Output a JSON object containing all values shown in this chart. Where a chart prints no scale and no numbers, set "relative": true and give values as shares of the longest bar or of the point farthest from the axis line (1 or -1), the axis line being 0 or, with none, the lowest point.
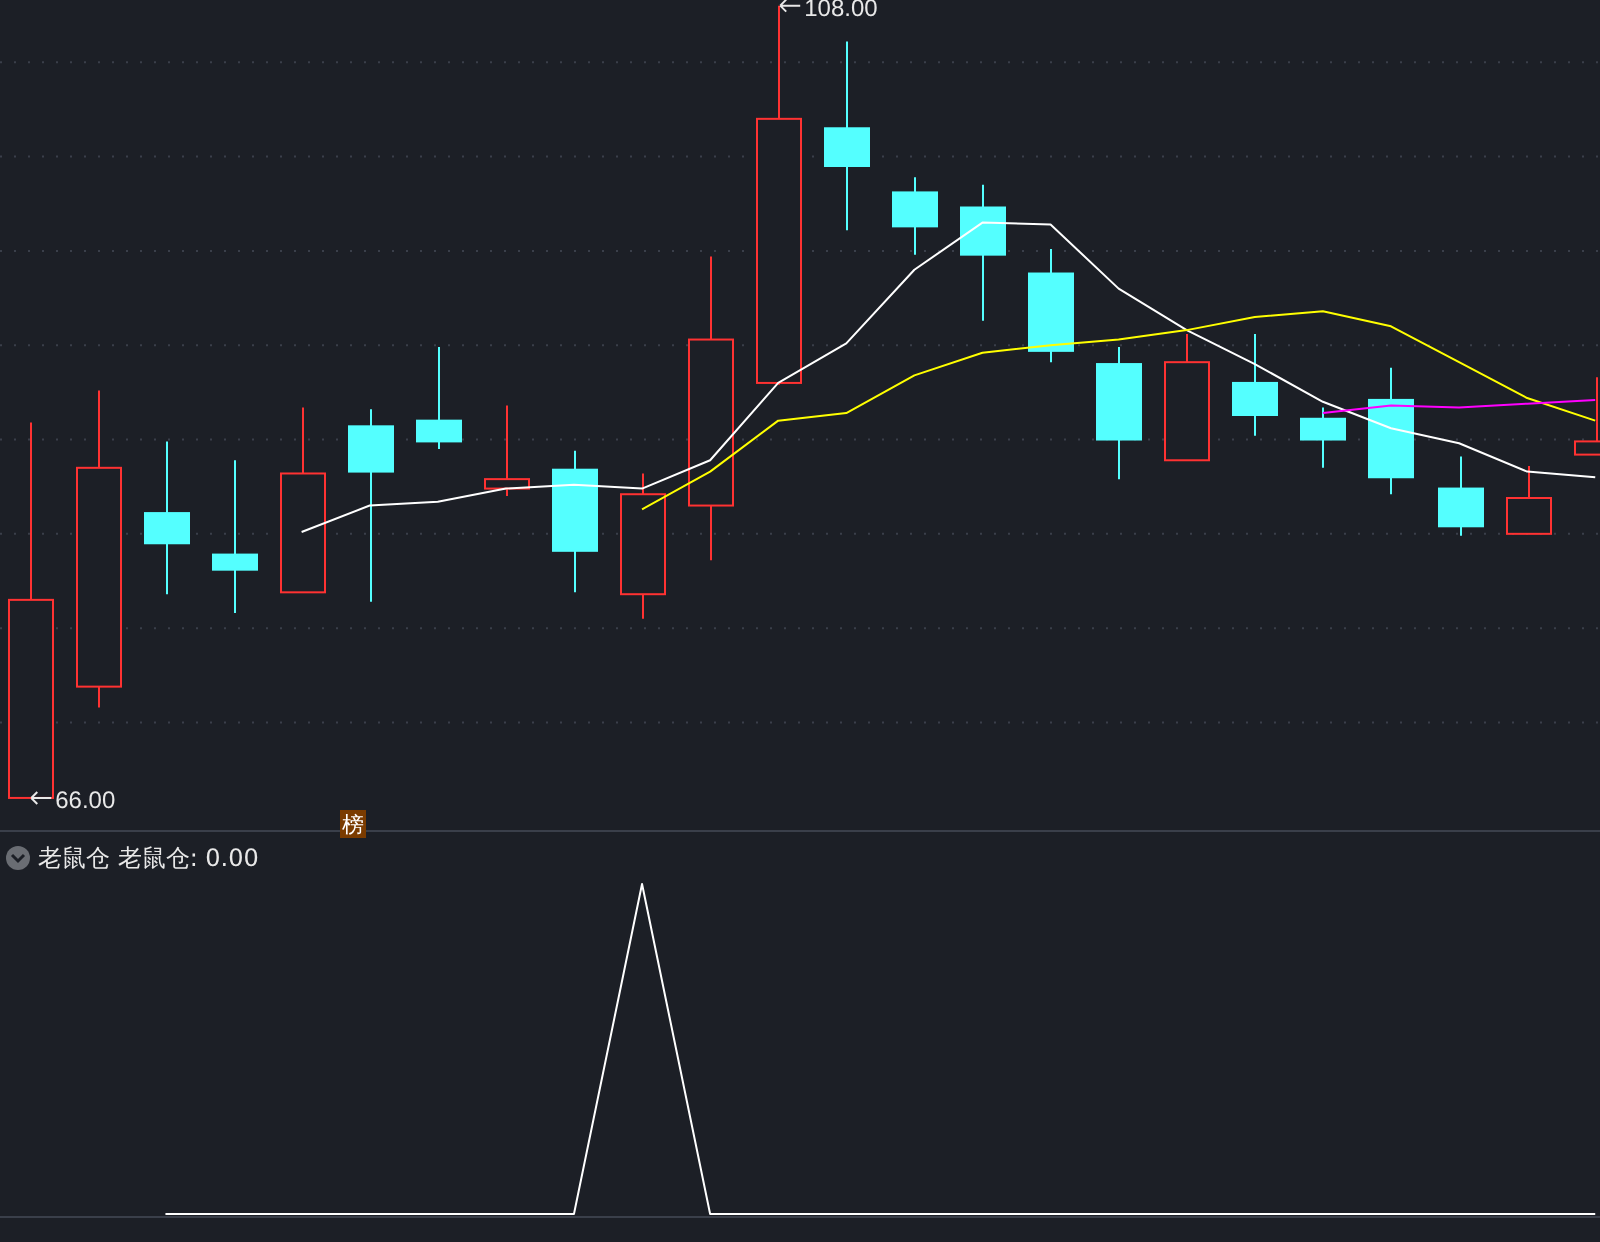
{
  "chart_data": [
    {
      "type": "candlestick",
      "categories": [
        null,
        null,
        null,
        null,
        null,
        null,
        null,
        null,
        null,
        null,
        null,
        null,
        null,
        null,
        null,
        null,
        null,
        null,
        null,
        null,
        null,
        null,
        null,
        null
      ],
      "ohlc": [
        [
          66,
          85.9,
          66,
          76.5
        ],
        [
          71.9,
          87.6,
          70.8,
          83.5
        ],
        [
          81.1,
          84.9,
          76.8,
          79.5
        ],
        [
          78.9,
          83.9,
          75.8,
          78.1
        ],
        [
          76.9,
          86.7,
          76.9,
          83.2
        ],
        [
          85.7,
          86.6,
          76.4,
          83.3
        ],
        [
          86,
          89.9,
          84.5,
          84.9
        ],
        [
          82.4,
          86.8,
          82,
          82.9
        ],
        [
          83.4,
          84.4,
          76.9,
          79.1
        ],
        [
          76.8,
          83.2,
          75.5,
          82.1
        ],
        [
          81.5,
          94.7,
          78.6,
          90.3
        ],
        [
          88,
          108,
          87.9,
          102
        ],
        [
          101.5,
          106.1,
          96.1,
          99.5
        ],
        [
          98.1,
          98.9,
          94.8,
          96.3
        ],
        [
          97.3,
          98.5,
          91.3,
          94.8
        ],
        [
          93.8,
          95.1,
          89.1,
          89.7
        ],
        [
          89,
          89.9,
          82.9,
          85
        ],
        [
          83.9,
          90.6,
          83.9,
          89.1
        ],
        [
          88,
          90.6,
          85.2,
          86.3
        ],
        [
          86.1,
          86.7,
          83.5,
          85
        ],
        [
          87.1,
          88.8,
          82.1,
          83
        ],
        [
          82.4,
          84.1,
          79.9,
          80.4
        ],
        [
          80,
          83.6,
          80,
          81.9
        ],
        [
          84.2,
          88.3,
          84.2,
          84.9
        ]
      ],
      "colors": [
        "#ff3232",
        "#ff3232",
        "#54ffff",
        "#54ffff",
        "#ff3232",
        "#54ffff",
        "#54ffff",
        "#ff3232",
        "#54ffff",
        "#ff3232",
        "#ff3232",
        "#ff3232",
        "#54ffff",
        "#54ffff",
        "#54ffff",
        "#54ffff",
        "#54ffff",
        "#ff3232",
        "#54ffff",
        "#54ffff",
        "#54ffff",
        "#54ffff",
        "#ff3232",
        "#ff3232"
      ],
      "series": [
        {
          "type": "line",
          "color": "#ffffff",
          "values": [
            null,
            null,
            null,
            null,
            80.1,
            81.5,
            81.7,
            82.4,
            82.6,
            82.4,
            83.9,
            88,
            90.1,
            94,
            96.5,
            96.4,
            93,
            90.8,
            89,
            87,
            85.6,
            84.8,
            83.3,
            83
          ]
        },
        {
          "type": "line",
          "color": "#ffff00",
          "values": [
            null,
            null,
            null,
            null,
            null,
            null,
            null,
            null,
            null,
            81.3,
            83.3,
            86,
            86.4,
            88.4,
            89.6,
            90,
            90.3,
            90.8,
            91.5,
            91.8,
            91,
            89.1,
            87.2,
            86
          ]
        },
        {
          "type": "line",
          "color": "#ff00ff",
          "values": [
            null,
            null,
            null,
            null,
            null,
            null,
            null,
            null,
            null,
            null,
            null,
            null,
            null,
            null,
            null,
            null,
            null,
            null,
            null,
            86.4,
            86.8,
            86.7,
            86.9,
            87.1
          ]
        }
      ],
      "ylim": [
        64.3,
        108.3
      ],
      "yticks": [
        {
          "value": 70,
          "label": null
        },
        {
          "value": 75,
          "label": null
        },
        {
          "value": 80,
          "label": null
        },
        {
          "value": 85,
          "label": null
        },
        {
          "value": 90,
          "label": null
        },
        {
          "value": 95,
          "label": null
        },
        {
          "value": 100,
          "label": null
        },
        {
          "value": 105,
          "label": null
        }
      ],
      "grid": true,
      "annotations": [
        "108.00",
        "66.00",
        "榜"
      ]
    },
    {
      "type": "line",
      "title": "老鼠仓 老鼠仓: 0.00",
      "relative": true,
      "categories": [
        null,
        null,
        null,
        null,
        null,
        null,
        null,
        null,
        null,
        null,
        null,
        null,
        null,
        null,
        null,
        null,
        null,
        null,
        null,
        null,
        null,
        null,
        null,
        null
      ],
      "series": [
        {
          "color": "#ffffff",
          "values": [
            null,
            null,
            0,
            0,
            0,
            0,
            0,
            0,
            0,
            1,
            0,
            0,
            0,
            0,
            0,
            0,
            0,
            0,
            0,
            0,
            0,
            0,
            0,
            0
          ]
        }
      ]
    }
  ]
}
